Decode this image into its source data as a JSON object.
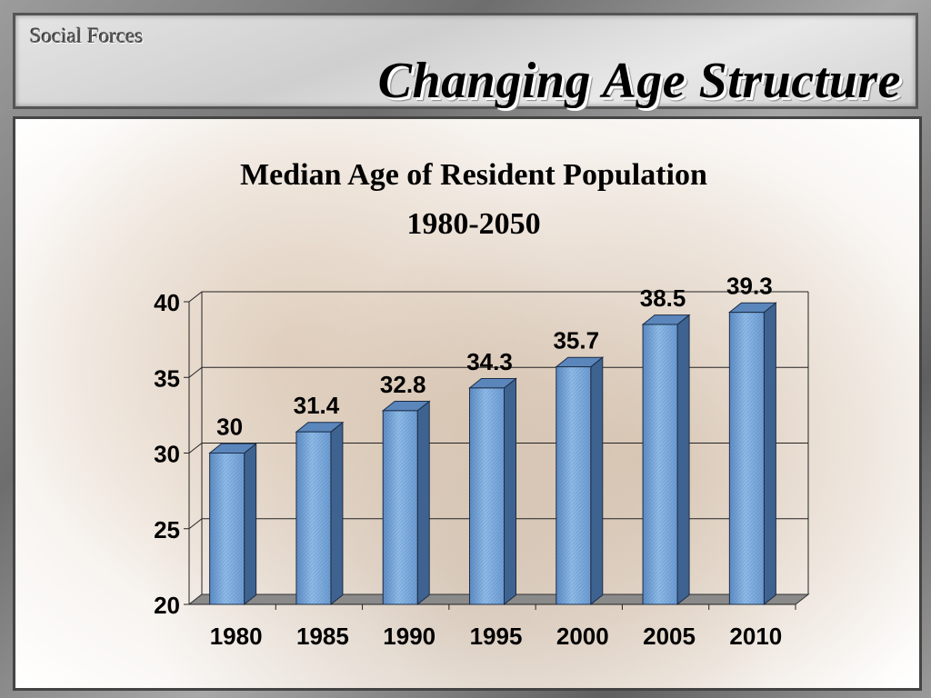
{
  "slide": {
    "kicker": "Social Forces",
    "title": "Changing Age Structure"
  },
  "chart_data": {
    "type": "bar",
    "title": "Median Age of Resident Population",
    "subtitle": "1980-2050",
    "xlabel": "",
    "ylabel": "",
    "categories": [
      "1980",
      "1985",
      "1990",
      "1995",
      "2000",
      "2005",
      "2010"
    ],
    "values": [
      30,
      31.4,
      32.8,
      34.3,
      35.7,
      38.5,
      39.3
    ],
    "data_labels": [
      "30",
      "31.4",
      "32.8",
      "34.3",
      "35.7",
      "38.5",
      "39.3"
    ],
    "ylim": [
      20,
      40
    ],
    "yticks": [
      20,
      25,
      30,
      35,
      40
    ],
    "ytick_labels": [
      "20",
      "25",
      "30",
      "35",
      "40"
    ],
    "grid": true,
    "legend": "none",
    "bar_color": "#6f9fd6",
    "style": "3d-column"
  }
}
